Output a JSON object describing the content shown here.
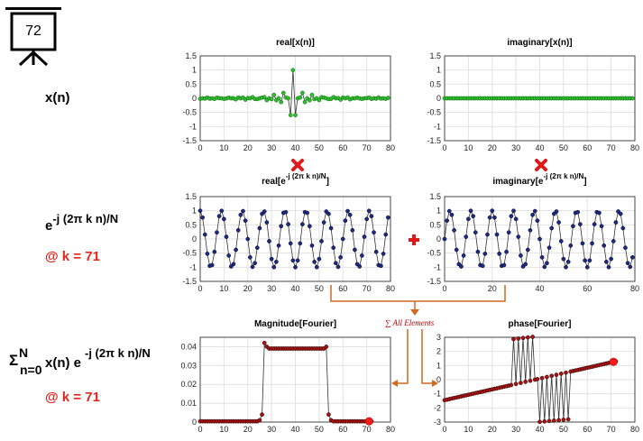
{
  "slide_number": "72",
  "row_labels": {
    "signal": "x(n)",
    "exp_base": "e",
    "exp_power": "-j (2π k n)/N",
    "k_label_1": "@ k = 71",
    "sum_sigma": "Σ",
    "sum_upper": "N",
    "sum_lower": "n=0",
    "sum_body": "x(n) e",
    "sum_power": "-j (2π k n)/N",
    "k_label_2": "@ k = 71"
  },
  "operators": {
    "multiply": "✖",
    "plus": "✚",
    "sum_all": "∑ All Elements"
  },
  "colors": {
    "green": "#28b428",
    "navy": "#1a1a7a",
    "red": "#c41414",
    "orange": "#d2691e",
    "accent_red": "#e8231c"
  },
  "chart_data": [
    {
      "id": "real_x",
      "type": "line",
      "title": "real[x(n)]",
      "marker": "green",
      "xlim": [
        0,
        80
      ],
      "ylim": [
        -1.5,
        1.5
      ],
      "xticks": [
        0,
        10,
        20,
        30,
        40,
        50,
        60,
        70,
        80
      ],
      "yticks": [
        1.5,
        1,
        0.5,
        0,
        -0.5,
        -1,
        -1.5
      ],
      "series": "sinc_real"
    },
    {
      "id": "imag_x",
      "type": "line",
      "title": "imaginary[x(n)]",
      "marker": "green",
      "xlim": [
        0,
        80
      ],
      "ylim": [
        -1.5,
        1.5
      ],
      "xticks": [
        0,
        10,
        20,
        30,
        40,
        50,
        60,
        70,
        80
      ],
      "yticks": [
        1.5,
        1,
        0.5,
        0,
        -0.5,
        -1,
        -1.5
      ],
      "series": "zeros"
    },
    {
      "id": "real_exp",
      "type": "line",
      "title_main": "real[e",
      "title_sup": "-j (2π k n)/N",
      "title_end": "]",
      "marker": "navy",
      "xlim": [
        0,
        80
      ],
      "ylim": [
        -1.5,
        1.5
      ],
      "xticks": [
        0,
        10,
        20,
        30,
        40,
        50,
        60,
        70,
        80
      ],
      "yticks": [
        1.5,
        1,
        0.5,
        0,
        -0.5,
        -1,
        -1.5
      ],
      "series": "cos_k"
    },
    {
      "id": "imag_exp",
      "type": "line",
      "title_main": "imaginary[e",
      "title_sup": "-j (2π k n)/N",
      "title_end": "]",
      "marker": "navy",
      "xlim": [
        0,
        80
      ],
      "ylim": [
        -1.5,
        1.5
      ],
      "xticks": [
        0,
        20,
        40,
        60,
        80
      ],
      "yticks": [
        1.5,
        1,
        0.5,
        0,
        -0.5,
        -1,
        -1.5
      ],
      "series": "sin_k"
    },
    {
      "id": "magnitude",
      "type": "line",
      "title": "Magnitude[Fourier]",
      "marker": "red",
      "xlim": [
        0,
        80
      ],
      "ylim": [
        0,
        0.045
      ],
      "xticks": [
        0,
        10,
        20,
        30,
        40,
        50,
        60,
        70,
        80
      ],
      "yticks": [
        0.04,
        0.03,
        0.02,
        0.01,
        0
      ],
      "series": "magnitude",
      "highlight_index": 71
    },
    {
      "id": "phase",
      "type": "line",
      "title": "phase[Fourier]",
      "marker": "red",
      "xlim": [
        0,
        80
      ],
      "ylim": [
        -3,
        3
      ],
      "xticks": [
        0,
        10,
        20,
        30,
        40,
        50,
        60,
        70,
        80
      ],
      "yticks": [
        3,
        2,
        1,
        0,
        -1,
        -2,
        -3
      ],
      "series": "phase",
      "highlight_index": 71
    }
  ],
  "signal_params": {
    "N": 80,
    "k": 71,
    "center": 39
  }
}
